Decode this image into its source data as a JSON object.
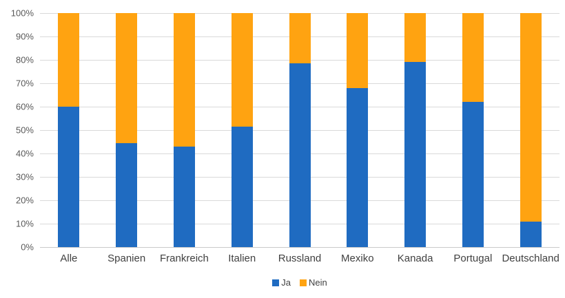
{
  "chart_data": {
    "type": "bar",
    "stacked": true,
    "percent_stacked": true,
    "title": "",
    "xlabel": "",
    "ylabel": "",
    "ylim": [
      0,
      100
    ],
    "yticks": [
      "0%",
      "10%",
      "20%",
      "30%",
      "40%",
      "50%",
      "60%",
      "70%",
      "80%",
      "90%",
      "100%"
    ],
    "grid": true,
    "legend_position": "bottom",
    "categories": [
      "Alle",
      "Spanien",
      "Frankreich",
      "Italien",
      "Russland",
      "Mexiko",
      "Kanada",
      "Portugal",
      "Deutschland"
    ],
    "series": [
      {
        "name": "Ja",
        "color": "#1F6BC1",
        "values": [
          60,
          44.5,
          43,
          51.5,
          78.5,
          68,
          79,
          62,
          11
        ]
      },
      {
        "name": "Nein",
        "color": "#FFA311",
        "values": [
          40,
          55.5,
          57,
          48.5,
          21.5,
          32,
          21,
          38,
          89
        ]
      }
    ],
    "colors": {
      "gridline": "#D9D9D9",
      "baseline": "#C9C9C9",
      "y_tick_label": "#595959",
      "category_label": "#404040",
      "legend_label": "#404040",
      "background": "#FFFFFF"
    }
  }
}
